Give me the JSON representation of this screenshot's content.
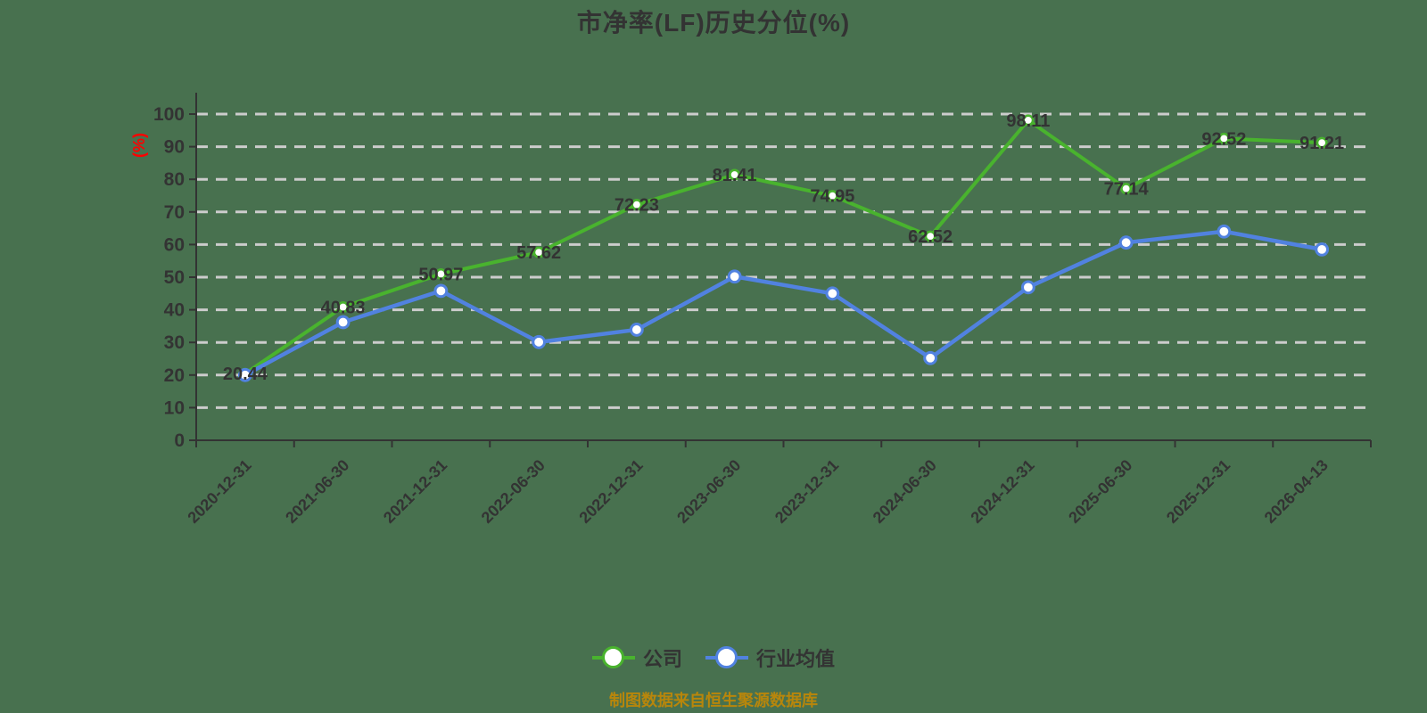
{
  "title": "市净率(LF)历史分位(%)",
  "footer": {
    "source_note": "制图数据来自恒生聚源数据库"
  },
  "legend": [
    {
      "label": "公司",
      "color": "#49B32E"
    },
    {
      "label": "行业均值",
      "color": "#5182E0"
    }
  ],
  "colors": {
    "background": "#48714F",
    "grid": "#CCCCCC",
    "axis": "#333333",
    "tick_text": "#333333",
    "title_text": "#333333",
    "data_label_text": "#000000",
    "unit_label_text": "#FF0000",
    "source_text": "#B8860B"
  },
  "chart_data": {
    "type": "line",
    "title": "市净率(LF)历史分位(%)",
    "ylabel": "(%)",
    "ylim": [
      0,
      100
    ],
    "y_ticks": [
      0,
      10,
      20,
      30,
      40,
      50,
      60,
      70,
      80,
      90,
      100
    ],
    "grid": "horizontal dashed",
    "legend_position": "bottom",
    "categories": [
      "2020-12-31",
      "2021-06-30",
      "2021-12-31",
      "2022-06-30",
      "2022-12-31",
      "2023-06-30",
      "2023-12-31",
      "2024-06-30",
      "2024-12-31",
      "2025-06-30",
      "2025-12-31",
      "2026-04-13"
    ],
    "series": [
      {
        "id": "company",
        "name": "公司",
        "color": "#49B32E",
        "data_labels": true,
        "values": [
          20.44,
          40.83,
          50.97,
          57.62,
          72.23,
          81.41,
          74.95,
          62.52,
          98.11,
          77.14,
          92.52,
          91.21
        ]
      },
      {
        "id": "industry",
        "name": "行业均值",
        "color": "#5182E0",
        "data_labels": false,
        "values": [
          20.0,
          36.2,
          45.8,
          30.1,
          33.9,
          50.2,
          45.0,
          25.2,
          46.9,
          60.6,
          64.0,
          58.5
        ]
      }
    ],
    "source_note": "制图数据来自恒生聚源数据库"
  }
}
